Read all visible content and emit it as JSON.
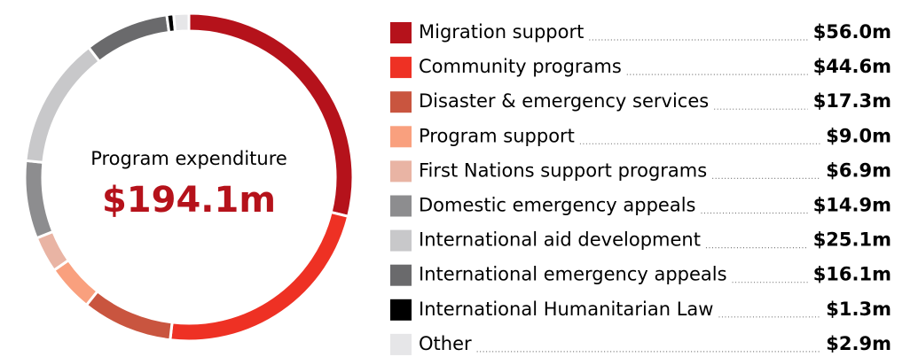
{
  "chart_data": {
    "type": "donut",
    "center_label": "Program expenditure",
    "center_value": "$194.1m",
    "categories": [
      "Migration support",
      "Community programs",
      "Disaster & emergency services",
      "Program support",
      "First Nations support programs",
      "Domestic emergency appeals",
      "International aid development",
      "International emergency appeals",
      "International Humanitarian Law",
      "Other"
    ],
    "values": [
      56.0,
      44.6,
      17.3,
      9.0,
      6.9,
      14.9,
      25.1,
      16.1,
      1.3,
      2.9
    ],
    "value_labels": [
      "$56.0m",
      "$44.6m",
      "$17.3m",
      "$9.0m",
      "$6.9m",
      "$14.9m",
      "$25.1m",
      "$16.1m",
      "$1.3m",
      "$2.9m"
    ],
    "colors": [
      "#b5121b",
      "#ee3124",
      "#c9553f",
      "#f9a07e",
      "#e9b4a4",
      "#8d8d8f",
      "#c8c8ca",
      "#6a6a6c",
      "#000000",
      "#e6e6e8"
    ]
  }
}
